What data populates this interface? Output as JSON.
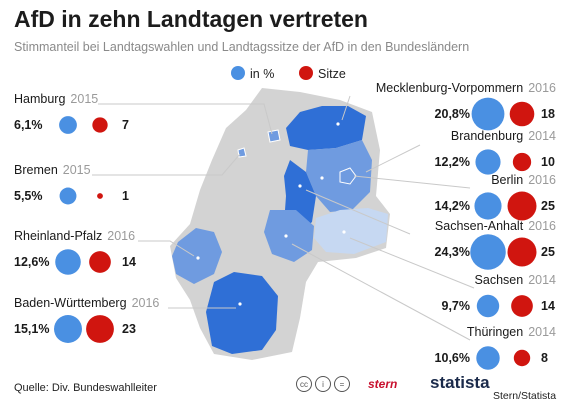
{
  "title": "AfD in zehn Landtagen vertreten",
  "subtitle": "Stimmanteil bei Landtagswahlen und Landtagssitze der AfD in den Bundesländern",
  "footer": {
    "source": "Quelle: Div. Bundeswahlleiter",
    "credit": "Stern/Statista",
    "stern_logo": "stern",
    "statista_logo": "statista",
    "license_icons": [
      "cc-icon",
      "by-icon",
      "nd-icon"
    ]
  },
  "colors": {
    "votes": "#4a90e2",
    "seats": "#d0150f",
    "map_dark": "#2f6fd6",
    "map_mid": "#6f9be0",
    "map_light": "#c6d8f2",
    "map_grey": "#d3d3d3"
  },
  "chart_data": {
    "type": "bubble",
    "legend": {
      "position": "top-center",
      "items": [
        "in %",
        "Sitze"
      ]
    },
    "states": [
      {
        "name": "Hamburg",
        "year": "2015",
        "vote_label": "6,1%",
        "vote_share": 6.1,
        "seats": 7
      },
      {
        "name": "Bremen",
        "year": "2015",
        "vote_label": "5,5%",
        "vote_share": 5.5,
        "seats": 1
      },
      {
        "name": "Rheinland-Pfalz",
        "year": "2016",
        "vote_label": "12,6%",
        "vote_share": 12.6,
        "seats": 14
      },
      {
        "name": "Baden-Württemberg",
        "year": "2016",
        "vote_label": "15,1%",
        "vote_share": 15.1,
        "seats": 23
      },
      {
        "name": "Mecklenburg-Vorpommern",
        "year": "2016",
        "vote_label": "20,8%",
        "vote_share": 20.8,
        "seats": 18
      },
      {
        "name": "Brandenburg",
        "year": "2014",
        "vote_label": "12,2%",
        "vote_share": 12.2,
        "seats": 10
      },
      {
        "name": "Berlin",
        "year": "2016",
        "vote_label": "14,2%",
        "vote_share": 14.2,
        "seats": 25
      },
      {
        "name": "Sachsen-Anhalt",
        "year": "2016",
        "vote_label": "24,3%",
        "vote_share": 24.3,
        "seats": 25
      },
      {
        "name": "Sachsen",
        "year": "2014",
        "vote_label": "9,7%",
        "vote_share": 9.7,
        "seats": 14
      },
      {
        "name": "Thüringen",
        "year": "2014",
        "vote_label": "10,6%",
        "vote_share": 10.6,
        "seats": 8
      }
    ]
  }
}
